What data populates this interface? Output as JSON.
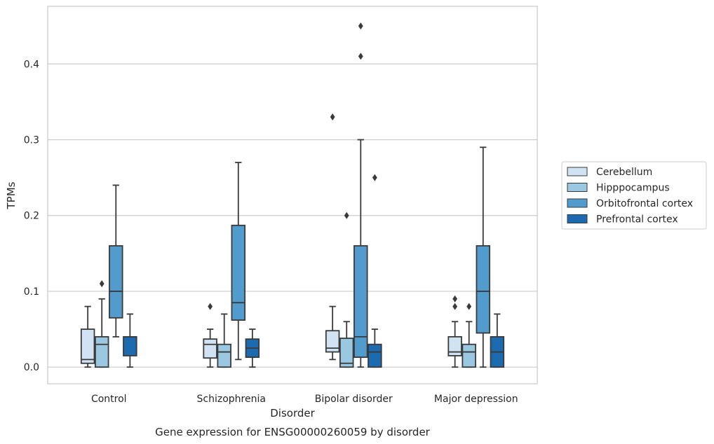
{
  "chart_data": {
    "type": "box",
    "title": "",
    "caption": "Gene expression for ENSG00000260059 by disorder",
    "xlabel": "Disorder",
    "ylabel": "TPMs",
    "ylim": [
      -0.022,
      0.476
    ],
    "yticks": [
      0.0,
      0.1,
      0.2,
      0.3,
      0.4
    ],
    "ytick_labels": [
      "0.0",
      "0.1",
      "0.2",
      "0.3",
      "0.4"
    ],
    "grid": true,
    "legend_position": "right",
    "categories": [
      "Control",
      "Schizophrenia",
      "Bipolar disorder",
      "Major depression"
    ],
    "series": [
      {
        "name": "Cerebellum",
        "color": "#d1e2f2",
        "boxes": [
          {
            "category": "Control",
            "whisker_low": 0.0,
            "q1": 0.005,
            "median": 0.01,
            "q3": 0.05,
            "whisker_high": 0.08,
            "outliers": []
          },
          {
            "category": "Schizophrenia",
            "whisker_low": 0.0,
            "q1": 0.012,
            "median": 0.03,
            "q3": 0.037,
            "whisker_high": 0.05,
            "outliers": [
              0.08
            ]
          },
          {
            "category": "Bipolar disorder",
            "whisker_low": 0.01,
            "q1": 0.02,
            "median": 0.025,
            "q3": 0.048,
            "whisker_high": 0.08,
            "outliers": [
              0.33
            ]
          },
          {
            "category": "Major depression",
            "whisker_low": 0.0,
            "q1": 0.015,
            "median": 0.02,
            "q3": 0.04,
            "whisker_high": 0.06,
            "outliers": [
              0.08,
              0.09
            ]
          }
        ]
      },
      {
        "name": "Hipppocampus",
        "color": "#9ac8e0",
        "boxes": [
          {
            "category": "Control",
            "whisker_low": 0.0,
            "q1": 0.0,
            "median": 0.03,
            "q3": 0.04,
            "whisker_high": 0.09,
            "outliers": [
              0.11
            ]
          },
          {
            "category": "Schizophrenia",
            "whisker_low": 0.0,
            "q1": 0.0,
            "median": 0.02,
            "q3": 0.03,
            "whisker_high": 0.07,
            "outliers": []
          },
          {
            "category": "Bipolar disorder",
            "whisker_low": 0.0,
            "q1": 0.0,
            "median": 0.005,
            "q3": 0.038,
            "whisker_high": 0.06,
            "outliers": [
              0.2
            ]
          },
          {
            "category": "Major depression",
            "whisker_low": 0.0,
            "q1": 0.0,
            "median": 0.02,
            "q3": 0.03,
            "whisker_high": 0.06,
            "outliers": [
              0.08
            ]
          }
        ]
      },
      {
        "name": "Orbitofrontal cortex",
        "color": "#519ccc",
        "boxes": [
          {
            "category": "Control",
            "whisker_low": 0.04,
            "q1": 0.065,
            "median": 0.1,
            "q3": 0.16,
            "whisker_high": 0.24,
            "outliers": []
          },
          {
            "category": "Schizophrenia",
            "whisker_low": 0.01,
            "q1": 0.062,
            "median": 0.085,
            "q3": 0.187,
            "whisker_high": 0.27,
            "outliers": []
          },
          {
            "category": "Bipolar disorder",
            "whisker_low": 0.0,
            "q1": 0.013,
            "median": 0.04,
            "q3": 0.16,
            "whisker_high": 0.3,
            "outliers": [
              0.41,
              0.45
            ]
          },
          {
            "category": "Major depression",
            "whisker_low": 0.0,
            "q1": 0.045,
            "median": 0.1,
            "q3": 0.16,
            "whisker_high": 0.29,
            "outliers": []
          }
        ]
      },
      {
        "name": "Prefrontal cortex",
        "color": "#1c6aaf",
        "boxes": [
          {
            "category": "Control",
            "whisker_low": 0.0,
            "q1": 0.015,
            "median": 0.04,
            "q3": 0.04,
            "whisker_high": 0.07,
            "outliers": []
          },
          {
            "category": "Schizophrenia",
            "whisker_low": 0.0,
            "q1": 0.013,
            "median": 0.025,
            "q3": 0.037,
            "whisker_high": 0.05,
            "outliers": []
          },
          {
            "category": "Bipolar disorder",
            "whisker_low": 0.0,
            "q1": 0.0,
            "median": 0.02,
            "q3": 0.03,
            "whisker_high": 0.05,
            "outliers": [
              0.25
            ]
          },
          {
            "category": "Major depression",
            "whisker_low": 0.0,
            "q1": 0.0,
            "median": 0.02,
            "q3": 0.04,
            "whisker_high": 0.07,
            "outliers": []
          }
        ]
      }
    ]
  }
}
